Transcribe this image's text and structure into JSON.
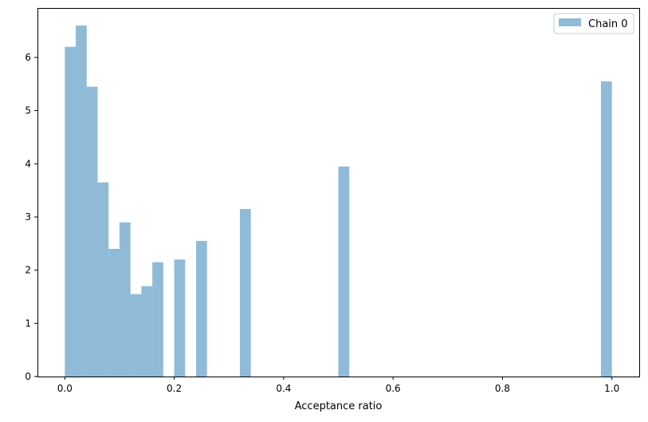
{
  "chart_data": {
    "type": "bar",
    "subtype": "histogram",
    "xlabel": "Acceptance ratio",
    "ylabel": "",
    "title": "",
    "xlim": [
      -0.05,
      1.05
    ],
    "ylim": [
      0,
      6.93
    ],
    "bin_width": 0.02,
    "x_ticks": [
      "0.0",
      "0.2",
      "0.4",
      "0.6",
      "0.8",
      "1.0"
    ],
    "x_tick_values": [
      0.0,
      0.2,
      0.4,
      0.6,
      0.8,
      1.0
    ],
    "y_ticks": [
      "0",
      "1",
      "2",
      "3",
      "4",
      "5",
      "6"
    ],
    "y_tick_values": [
      0,
      1,
      2,
      3,
      4,
      5,
      6
    ],
    "grid": false,
    "legend_position": "top-right",
    "series": [
      {
        "name": "Chain 0",
        "color": "#1f77b4",
        "alpha": 0.5,
        "bins": [
          {
            "x0": 0.0,
            "x1": 0.02,
            "value": 6.2
          },
          {
            "x0": 0.02,
            "x1": 0.04,
            "value": 6.6
          },
          {
            "x0": 0.04,
            "x1": 0.06,
            "value": 5.45
          },
          {
            "x0": 0.06,
            "x1": 0.08,
            "value": 3.65
          },
          {
            "x0": 0.08,
            "x1": 0.1,
            "value": 2.4
          },
          {
            "x0": 0.1,
            "x1": 0.12,
            "value": 2.9
          },
          {
            "x0": 0.12,
            "x1": 0.14,
            "value": 1.55
          },
          {
            "x0": 0.14,
            "x1": 0.16,
            "value": 1.7
          },
          {
            "x0": 0.16,
            "x1": 0.18,
            "value": 2.15
          },
          {
            "x0": 0.2,
            "x1": 0.22,
            "value": 2.2
          },
          {
            "x0": 0.24,
            "x1": 0.26,
            "value": 2.55
          },
          {
            "x0": 0.32,
            "x1": 0.34,
            "value": 3.15
          },
          {
            "x0": 0.5,
            "x1": 0.52,
            "value": 3.95
          },
          {
            "x0": 0.98,
            "x1": 1.0,
            "value": 5.55
          }
        ]
      }
    ]
  }
}
